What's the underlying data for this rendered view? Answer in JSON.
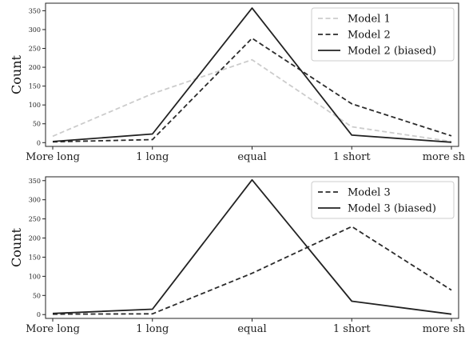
{
  "chart_data": [
    {
      "type": "line",
      "categories": [
        "More long",
        "1 long",
        "equal",
        "1 short",
        "more short"
      ],
      "ylabel": "Count",
      "ylim": [
        -10,
        370
      ],
      "yticks": [
        0,
        50,
        100,
        150,
        200,
        250,
        300,
        350
      ],
      "legend_position": "top-right",
      "series": [
        {
          "name": "Model 1",
          "values": [
            17,
            130,
            220,
            42,
            3
          ],
          "color": "#cccccc",
          "dash": "dashed"
        },
        {
          "name": "Model 2",
          "values": [
            2,
            8,
            277,
            103,
            18
          ],
          "color": "#2b2b2b",
          "dash": "dashed"
        },
        {
          "name": "Model 2 (biased)",
          "values": [
            3,
            23,
            357,
            20,
            1
          ],
          "color": "#222222",
          "dash": "solid"
        }
      ]
    },
    {
      "type": "line",
      "categories": [
        "More long",
        "1 long",
        "equal",
        "1 short",
        "more short"
      ],
      "ylabel": "Count",
      "ylim": [
        -10,
        360
      ],
      "yticks": [
        0,
        50,
        100,
        150,
        200,
        250,
        300,
        350
      ],
      "legend_position": "top-right",
      "series": [
        {
          "name": "Model 3",
          "values": [
            1,
            2,
            108,
            230,
            64
          ],
          "color": "#2b2b2b",
          "dash": "dashed"
        },
        {
          "name": "Model 3 (biased)",
          "values": [
            3,
            14,
            352,
            35,
            1
          ],
          "color": "#222222",
          "dash": "solid"
        }
      ]
    }
  ]
}
